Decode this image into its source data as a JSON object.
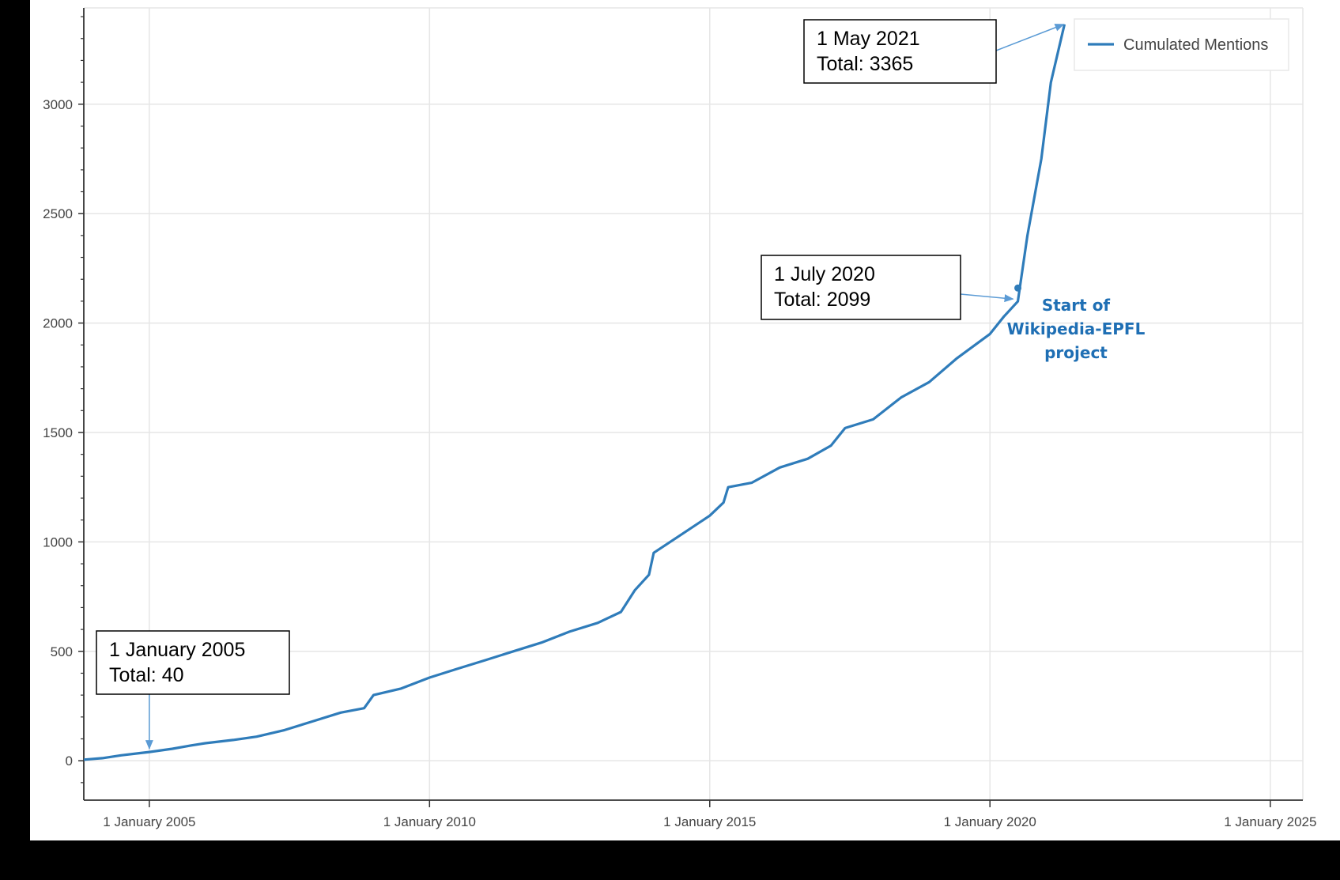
{
  "chart_data": {
    "type": "line",
    "title": "",
    "xlabel": "",
    "ylabel": "",
    "x_ticks": [
      "1 January 2005",
      "1 January 2010",
      "1 January 2015",
      "1 January 2020",
      "1 January 2025"
    ],
    "y_ticks": [
      "0",
      "500",
      "1000",
      "1500",
      "2000",
      "2500",
      "3000"
    ],
    "ylim": [
      -180,
      3440
    ],
    "xlim": [
      "2003-11-01",
      "2025-08-01"
    ],
    "grid": true,
    "legend_position": "top-right",
    "line_color": "#2f7cba",
    "series": [
      {
        "name": "Cumulated Mentions",
        "points": [
          [
            "2003-11-01",
            5
          ],
          [
            "2004-03-01",
            12
          ],
          [
            "2004-07-01",
            25
          ],
          [
            "2004-11-01",
            35
          ],
          [
            "2005-01-01",
            40
          ],
          [
            "2005-06-01",
            55
          ],
          [
            "2005-10-01",
            70
          ],
          [
            "2006-01-01",
            80
          ],
          [
            "2006-07-01",
            95
          ],
          [
            "2006-12-01",
            110
          ],
          [
            "2007-06-01",
            140
          ],
          [
            "2007-12-01",
            180
          ],
          [
            "2008-06-01",
            220
          ],
          [
            "2008-11-01",
            240
          ],
          [
            "2009-01-01",
            300
          ],
          [
            "2009-07-01",
            330
          ],
          [
            "2010-01-01",
            380
          ],
          [
            "2010-07-01",
            420
          ],
          [
            "2011-01-01",
            460
          ],
          [
            "2011-07-01",
            500
          ],
          [
            "2012-01-01",
            540
          ],
          [
            "2012-07-01",
            590
          ],
          [
            "2013-01-01",
            630
          ],
          [
            "2013-06-01",
            680
          ],
          [
            "2013-09-01",
            780
          ],
          [
            "2013-12-01",
            850
          ],
          [
            "2014-01-01",
            950
          ],
          [
            "2014-06-01",
            1020
          ],
          [
            "2015-01-01",
            1120
          ],
          [
            "2015-04-01",
            1180
          ],
          [
            "2015-05-01",
            1250
          ],
          [
            "2015-10-01",
            1270
          ],
          [
            "2016-04-01",
            1340
          ],
          [
            "2016-10-01",
            1380
          ],
          [
            "2017-03-01",
            1440
          ],
          [
            "2017-06-01",
            1520
          ],
          [
            "2017-12-01",
            1560
          ],
          [
            "2018-06-01",
            1660
          ],
          [
            "2018-12-01",
            1730
          ],
          [
            "2019-06-01",
            1840
          ],
          [
            "2020-01-01",
            1950
          ],
          [
            "2020-04-01",
            2030
          ],
          [
            "2020-07-01",
            2099
          ],
          [
            "2020-09-01",
            2400
          ],
          [
            "2020-12-01",
            2750
          ],
          [
            "2021-02-01",
            3100
          ],
          [
            "2021-05-01",
            3365
          ]
        ]
      }
    ],
    "annotations": [
      {
        "label": "1 January 2005",
        "total_text": "Total: 40",
        "x": "2005-01-01",
        "y": 40
      },
      {
        "label": "1 July 2020",
        "total_text": "Total: 2099",
        "x": "2020-07-01",
        "y": 2099
      },
      {
        "label": "1 May 2021",
        "total_text": "Total: 3365",
        "x": "2021-05-01",
        "y": 3365
      }
    ],
    "marker": {
      "x": "2020-07-01",
      "y": 2160
    },
    "project_label": [
      "Start of",
      "Wikipedia-EPFL",
      "project"
    ]
  }
}
